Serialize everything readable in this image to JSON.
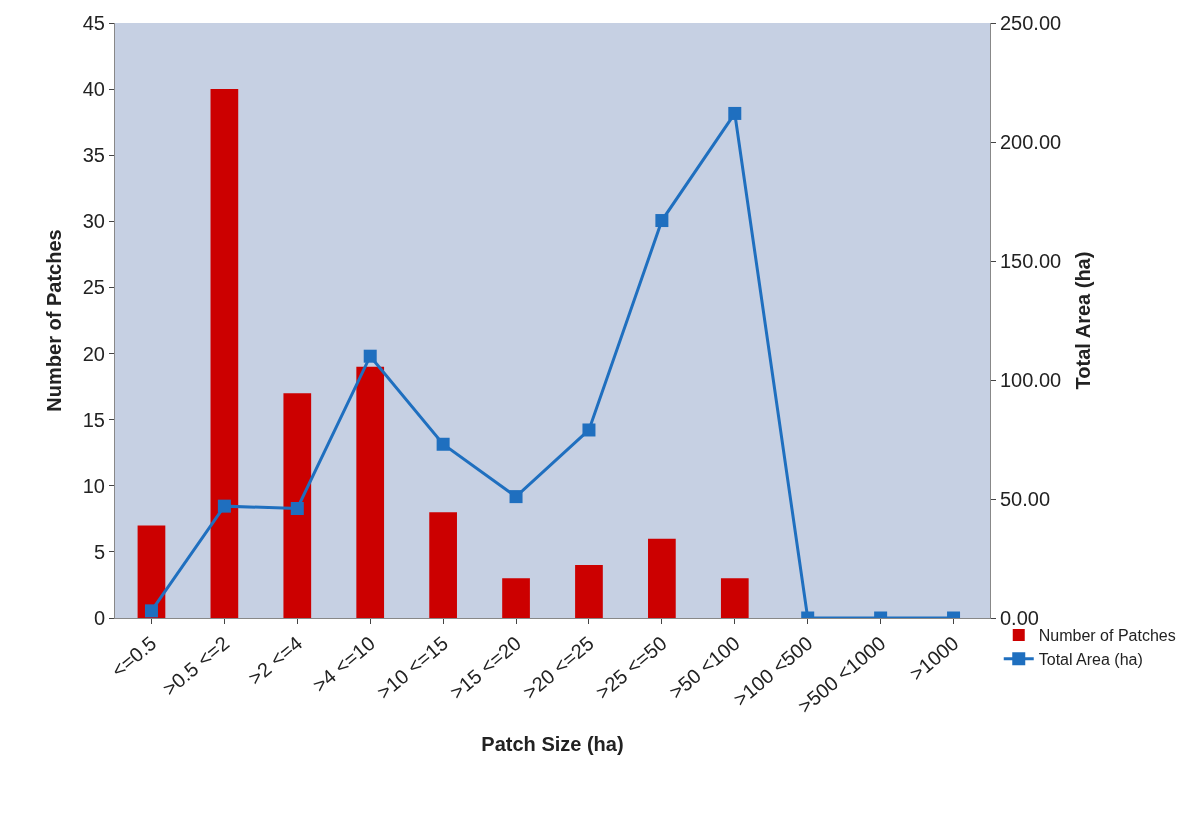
{
  "chart_data": {
    "type": "bar",
    "xlabel": "Patch Size (ha)",
    "ylabel": "Number of Patches",
    "y2label": "Total Area (ha)",
    "categories": [
      "<=0.5",
      ">0.5 <=2",
      ">2 <=4",
      ">4 <=10",
      ">10 <=15",
      ">15 <=20",
      ">20 <=25",
      ">25 <=50",
      ">50 <100",
      ">100 <500",
      ">500 <1000",
      ">1000"
    ],
    "series": [
      {
        "name": "Number of Patches",
        "color": "#cc0000",
        "values": [
          7,
          40,
          17,
          19,
          8,
          3,
          4,
          6,
          3,
          0,
          0,
          0
        ]
      },
      {
        "name": "Total Area (ha)",
        "type": "line",
        "axis": "y2",
        "color": "#1f6fbf",
        "marker": "square",
        "values": [
          3,
          47,
          46,
          110,
          73,
          51,
          79,
          167,
          212,
          0,
          0,
          0
        ]
      }
    ],
    "ylim": [
      0,
      45
    ],
    "yticks": [
      0,
      5,
      10,
      15,
      20,
      25,
      30,
      35,
      40,
      45
    ],
    "y2lim": [
      0,
      250
    ],
    "y2ticks": [
      {
        "value": 0,
        "label": "0.00"
      },
      {
        "value": 50,
        "label": "50.00"
      },
      {
        "value": 100,
        "label": "100.00"
      },
      {
        "value": 150,
        "label": "150.00"
      },
      {
        "value": 200,
        "label": "200.00"
      },
      {
        "value": 250,
        "label": "250.00"
      }
    ],
    "grid": false,
    "legend": "bottom right"
  }
}
